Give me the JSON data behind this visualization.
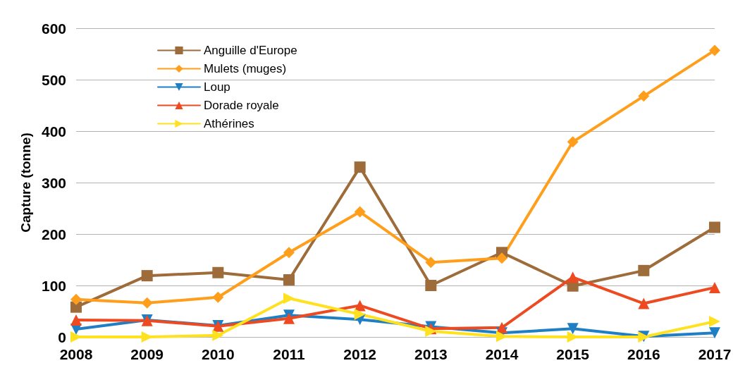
{
  "chart_data": {
    "type": "line",
    "ylabel": "Capture (tonne)",
    "categories": [
      "2008",
      "2009",
      "2010",
      "2011",
      "2012",
      "2013",
      "2014",
      "2015",
      "2016",
      "2017"
    ],
    "ylim": [
      0,
      600
    ],
    "yticks": [
      0,
      100,
      200,
      300,
      400,
      500,
      600
    ],
    "grid": "y",
    "legend": "top left",
    "line_style": "solid",
    "series": [
      {
        "name": "Anguille d'Europe",
        "color": "#9e6b3a",
        "marker": "square",
        "values": [
          58,
          119,
          125,
          111,
          330,
          100,
          164,
          99,
          129,
          213
        ]
      },
      {
        "name": "Mulets (muges)",
        "color": "#ff9e1b",
        "marker": "diamond",
        "values": [
          73,
          66,
          77,
          164,
          243,
          145,
          153,
          379,
          468,
          557
        ]
      },
      {
        "name": "Loup",
        "color": "#1f7fc4",
        "marker": "triangle-down",
        "values": [
          15,
          33,
          22,
          42,
          34,
          20,
          8,
          16,
          1,
          8
        ]
      },
      {
        "name": "Dorade royale",
        "color": "#ee4a22",
        "marker": "triangle",
        "values": [
          33,
          32,
          21,
          36,
          61,
          16,
          18,
          116,
          65,
          96
        ]
      },
      {
        "name": "Athérines",
        "color": "#ffe11f",
        "marker": "triangle-right",
        "values": [
          0,
          0,
          3,
          75,
          44,
          11,
          1,
          0,
          0,
          30
        ]
      }
    ]
  }
}
